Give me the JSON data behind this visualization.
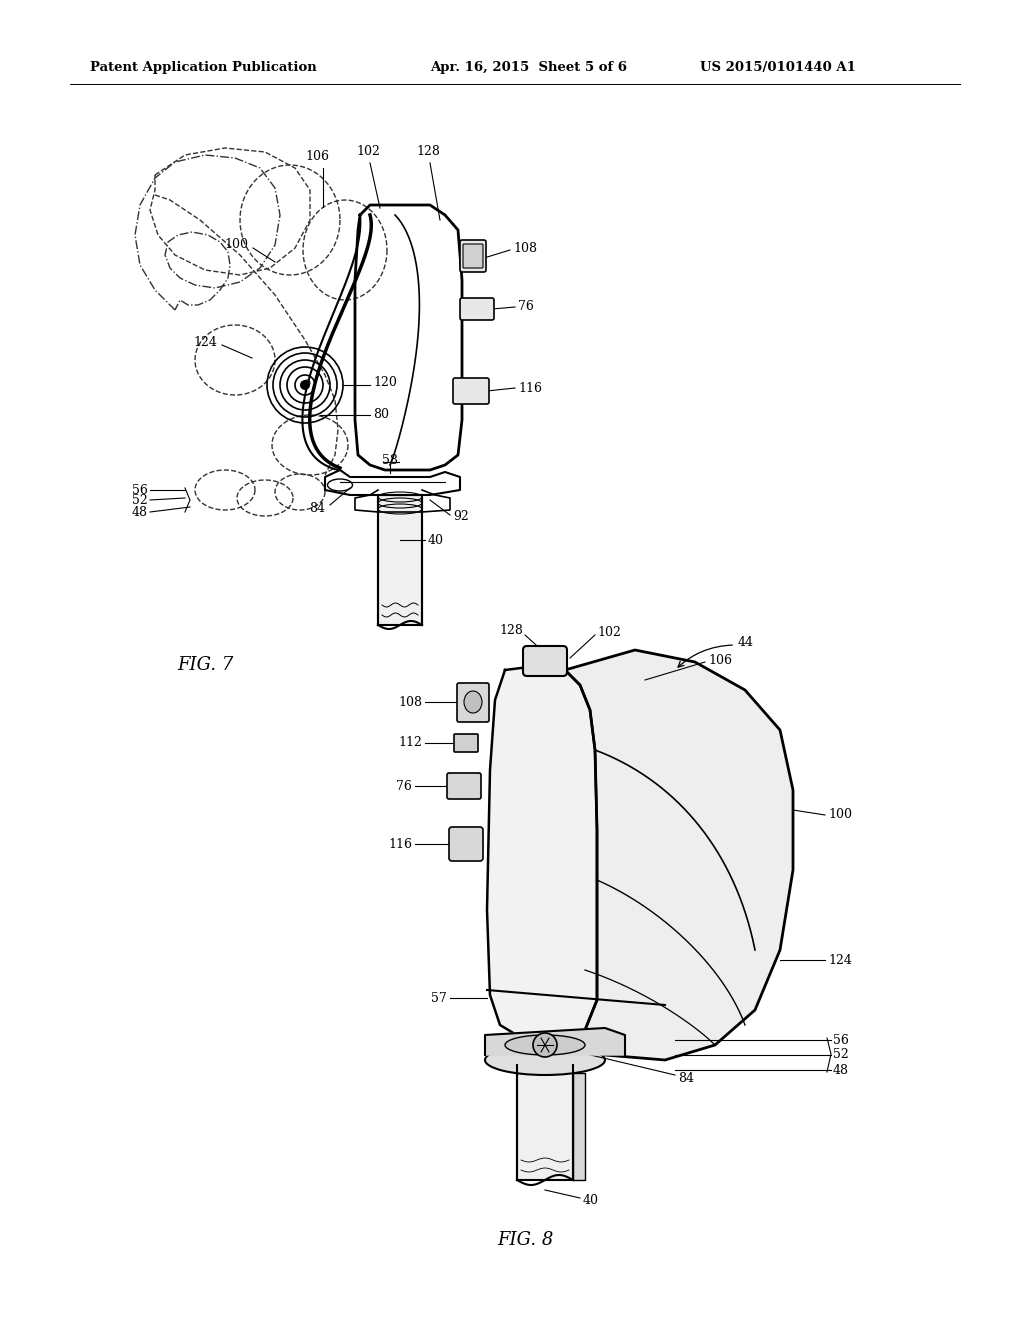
{
  "background_color": "#ffffff",
  "header_left": "Patent Application Publication",
  "header_center": "Apr. 16, 2015  Sheet 5 of 6",
  "header_right": "US 2015/0101440 A1",
  "fig7_label": "FIG. 7",
  "fig8_label": "FIG. 8",
  "line_color": "#000000",
  "dashed_color": "#333333",
  "header_fontsize": 9.5,
  "label_fontsize": 9,
  "fig_label_fontsize": 13
}
